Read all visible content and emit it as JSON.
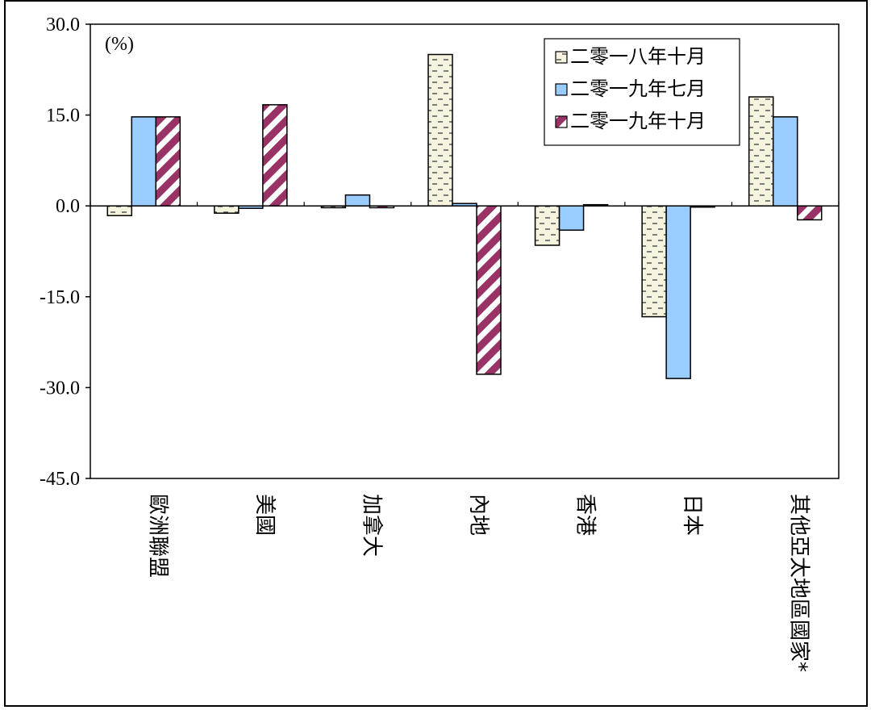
{
  "chart_data": {
    "type": "bar",
    "unit_label": "(%)",
    "categories": [
      "歐洲聯盟",
      "美國",
      "加拿大",
      "內地",
      "香港",
      "日本",
      "其他亞太地區國家*"
    ],
    "series": [
      {
        "name": "二零一八年十月",
        "values": [
          -1.6,
          -1.2,
          -0.3,
          25.0,
          -6.5,
          -18.3,
          18.0
        ],
        "color": "#f4f1dc",
        "pattern": "dashes"
      },
      {
        "name": "二零一九年七月",
        "values": [
          14.7,
          -0.4,
          1.8,
          0.4,
          -4.0,
          -28.5,
          14.7
        ],
        "color": "#99ccff",
        "pattern": "solid"
      },
      {
        "name": "二零一九年十月",
        "values": [
          14.7,
          16.7,
          -0.3,
          -27.8,
          0.2,
          0,
          -2.3
        ],
        "color": "#993366",
        "pattern": "diagonal"
      }
    ],
    "ylim": [
      -45,
      30
    ],
    "yticks": [
      "30.0",
      "15.0",
      "0.0",
      "-15.0",
      "-30.0",
      "-45.0"
    ],
    "ytick_values": [
      30,
      15,
      0,
      -15,
      -30,
      -45
    ],
    "legend_position": "top-right",
    "grid": false
  }
}
